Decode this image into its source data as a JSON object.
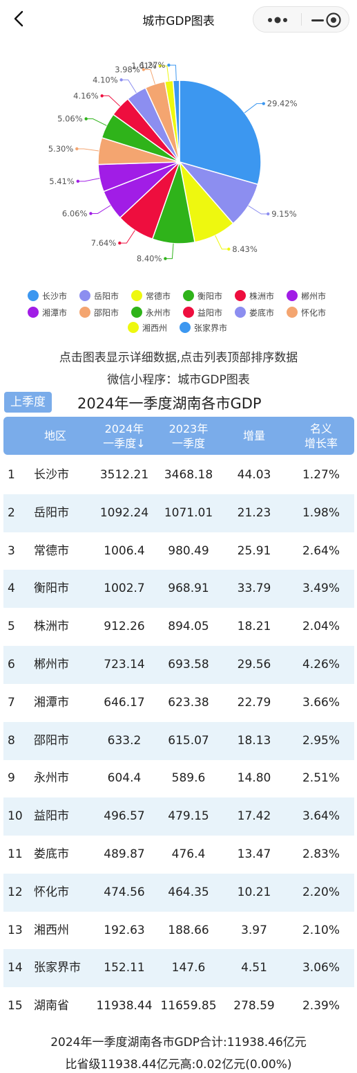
{
  "header": {
    "title": "城市GDP图表"
  },
  "chart_data": {
    "type": "pie",
    "slices": [
      {
        "name": "长沙市",
        "value": 29.42,
        "label": "29.42%",
        "color": "#3c97f0"
      },
      {
        "name": "岳阳市",
        "value": 9.15,
        "label": "9.15%",
        "color": "#8c8ef0"
      },
      {
        "name": "常德市",
        "value": 8.43,
        "label": "8.43%",
        "color": "#eef80f"
      },
      {
        "name": "衡阳市",
        "value": 8.4,
        "label": "8.40%",
        "color": "#2fb31a"
      },
      {
        "name": "株洲市",
        "value": 7.64,
        "label": "7.64%",
        "color": "#ee0e3e"
      },
      {
        "name": "郴州市",
        "value": 6.06,
        "label": "6.06%",
        "color": "#a11de6"
      },
      {
        "name": "湘潭市",
        "value": 5.41,
        "label": "5.41%",
        "color": "#a11de6"
      },
      {
        "name": "邵阳市",
        "value": 5.3,
        "label": "5.30%",
        "color": "#f4a570"
      },
      {
        "name": "永州市",
        "value": 5.06,
        "label": "5.06%",
        "color": "#2fb31a"
      },
      {
        "name": "益阳市",
        "value": 4.16,
        "label": "4.16%",
        "color": "#ee0e3e"
      },
      {
        "name": "娄底市",
        "value": 4.1,
        "label": "4.10%",
        "color": "#8c8ef0"
      },
      {
        "name": "怀化市",
        "value": 3.98,
        "label": "3.98%",
        "color": "#f4a570"
      },
      {
        "name": "湘西州",
        "value": 1.61,
        "label": "1.61%",
        "color": "#eef80f"
      },
      {
        "name": "张家界市",
        "value": 1.27,
        "label": "1.27%",
        "color": "#3c97f0"
      }
    ],
    "legend_position": "bottom"
  },
  "legend": [
    {
      "name": "长沙市",
      "color": "#3c97f0"
    },
    {
      "name": "岳阳市",
      "color": "#8c8ef0"
    },
    {
      "name": "常德市",
      "color": "#eef80f"
    },
    {
      "name": "衡阳市",
      "color": "#2fb31a"
    },
    {
      "name": "株洲市",
      "color": "#ee0e3e"
    },
    {
      "name": "郴州市",
      "color": "#a11de6"
    },
    {
      "name": "湘潭市",
      "color": "#a11de6"
    },
    {
      "name": "邵阳市",
      "color": "#f4a570"
    },
    {
      "name": "永州市",
      "color": "#2fb31a"
    },
    {
      "name": "益阳市",
      "color": "#ee0e3e"
    },
    {
      "name": "娄底市",
      "color": "#8c8ef0"
    },
    {
      "name": "怀化市",
      "color": "#f4a570"
    },
    {
      "name": "湘西州",
      "color": "#eef80f"
    },
    {
      "name": "张家界市",
      "color": "#3c97f0"
    }
  ],
  "info": {
    "line1": "点击图表显示详细数据,点击列表顶部排序数据",
    "line2": "微信小程序：城市GDP图表"
  },
  "table": {
    "prev_button": "上季度",
    "title": "2024年一季度湖南各市GDP",
    "headers": {
      "region": "地区",
      "v24_line1": "2024年",
      "v24_line2": "一季度↓",
      "v23_line1": "2023年",
      "v23_line2": "一季度",
      "increase": "增量",
      "rate_line1": "名义",
      "rate_line2": "增长率"
    },
    "rows": [
      {
        "idx": "1",
        "name": "长沙市",
        "v24": "3512.21",
        "v23": "3468.18",
        "inc": "44.03",
        "rate": "1.27%"
      },
      {
        "idx": "2",
        "name": "岳阳市",
        "v24": "1092.24",
        "v23": "1071.01",
        "inc": "21.23",
        "rate": "1.98%"
      },
      {
        "idx": "3",
        "name": "常德市",
        "v24": "1006.4",
        "v23": "980.49",
        "inc": "25.91",
        "rate": "2.64%"
      },
      {
        "idx": "4",
        "name": "衡阳市",
        "v24": "1002.7",
        "v23": "968.91",
        "inc": "33.79",
        "rate": "3.49%"
      },
      {
        "idx": "5",
        "name": "株洲市",
        "v24": "912.26",
        "v23": "894.05",
        "inc": "18.21",
        "rate": "2.04%"
      },
      {
        "idx": "6",
        "name": "郴州市",
        "v24": "723.14",
        "v23": "693.58",
        "inc": "29.56",
        "rate": "4.26%"
      },
      {
        "idx": "7",
        "name": "湘潭市",
        "v24": "646.17",
        "v23": "623.38",
        "inc": "22.79",
        "rate": "3.66%"
      },
      {
        "idx": "8",
        "name": "邵阳市",
        "v24": "633.2",
        "v23": "615.07",
        "inc": "18.13",
        "rate": "2.95%"
      },
      {
        "idx": "9",
        "name": "永州市",
        "v24": "604.4",
        "v23": "589.6",
        "inc": "14.80",
        "rate": "2.51%"
      },
      {
        "idx": "10",
        "name": "益阳市",
        "v24": "496.57",
        "v23": "479.15",
        "inc": "17.42",
        "rate": "3.64%"
      },
      {
        "idx": "11",
        "name": "娄底市",
        "v24": "489.87",
        "v23": "476.4",
        "inc": "13.47",
        "rate": "2.83%"
      },
      {
        "idx": "12",
        "name": "怀化市",
        "v24": "474.56",
        "v23": "464.35",
        "inc": "10.21",
        "rate": "2.20%"
      },
      {
        "idx": "13",
        "name": "湘西州",
        "v24": "192.63",
        "v23": "188.66",
        "inc": "3.97",
        "rate": "2.10%"
      },
      {
        "idx": "14",
        "name": "张家界市",
        "v24": "152.11",
        "v23": "147.6",
        "inc": "4.51",
        "rate": "3.06%"
      },
      {
        "idx": "15",
        "name": "湖南省",
        "v24": "11938.44",
        "v23": "11659.85",
        "inc": "278.59",
        "rate": "2.39%"
      }
    ]
  },
  "footer": {
    "line1": "2024年一季度湖南各市GDP合计:11938.46亿元",
    "line2": "比省级11938.44亿元高:0.02亿元(0.00%)"
  },
  "colors": {
    "accent": "#7aacea",
    "row_alt": "#e8f3fa"
  }
}
